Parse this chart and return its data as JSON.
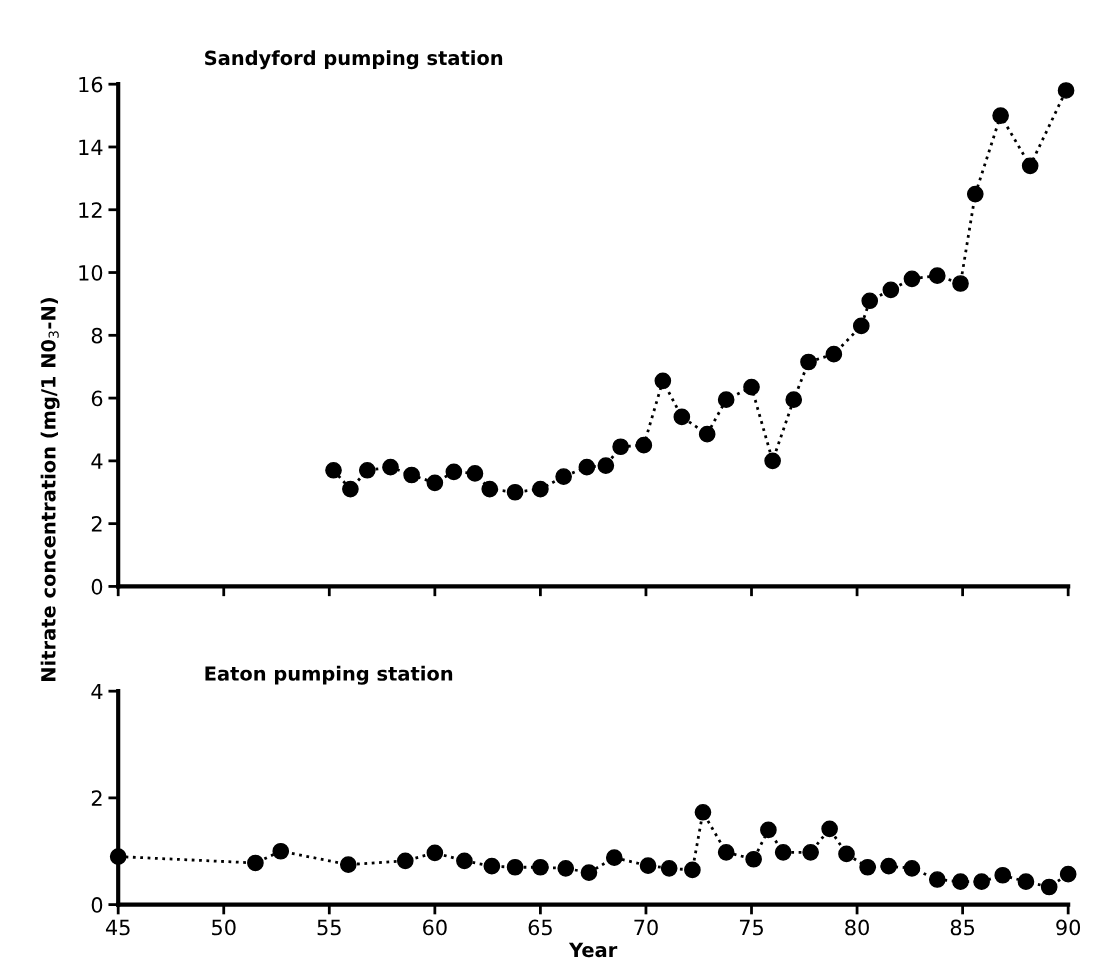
{
  "chart_data": [
    {
      "type": "line",
      "title": "Sandyford pumping station",
      "ylabel": "Nitrate concentration (mg/1 N0$_{3}$-N)",
      "marker": "circle",
      "line_style": "dotted",
      "grid": false,
      "legend": false,
      "tick_labels": "y",
      "xlim": [
        45,
        90
      ],
      "xticks": [
        45,
        50,
        55,
        60,
        65,
        70,
        75,
        80,
        85,
        90
      ],
      "ylim": [
        0,
        16
      ],
      "yticks": [
        0,
        2,
        4,
        6,
        8,
        10,
        12,
        14,
        16
      ],
      "x": [
        55.2,
        56.0,
        56.8,
        57.9,
        58.9,
        60.0,
        60.9,
        61.9,
        62.6,
        63.8,
        65.0,
        66.1,
        67.2,
        68.1,
        68.8,
        69.9,
        70.8,
        71.7,
        72.9,
        73.8,
        75.0,
        76.0,
        77.0,
        77.7,
        78.9,
        80.2,
        80.6,
        81.6,
        82.6,
        83.8,
        84.9,
        85.6,
        86.8,
        88.2,
        89.9
      ],
      "series": [
        {
          "color": "#000000",
          "values": [
            3.7,
            3.1,
            3.7,
            3.8,
            3.55,
            3.3,
            3.65,
            3.6,
            3.1,
            3.0,
            3.1,
            3.5,
            3.8,
            3.85,
            4.45,
            4.5,
            6.55,
            5.4,
            4.85,
            5.95,
            6.35,
            4.0,
            5.95,
            7.15,
            7.4,
            8.3,
            9.1,
            9.45,
            9.8,
            9.9,
            9.65,
            12.5,
            15.0,
            13.4,
            15.8
          ]
        }
      ]
    },
    {
      "type": "line",
      "title": "Eaton pumping station",
      "xlabel": "Year",
      "marker": "circle",
      "line_style": "dotted",
      "grid": false,
      "legend": false,
      "xlim": [
        45,
        90
      ],
      "xticks": [
        45,
        50,
        55,
        60,
        65,
        70,
        75,
        80,
        85,
        90
      ],
      "ylim": [
        0,
        4
      ],
      "yticks": [
        0,
        2,
        4
      ],
      "x": [
        45.0,
        51.5,
        52.7,
        55.9,
        58.6,
        60.0,
        61.4,
        62.7,
        63.8,
        65.0,
        66.2,
        67.3,
        68.5,
        70.1,
        71.1,
        72.2,
        72.7,
        73.8,
        75.1,
        75.8,
        76.5,
        77.8,
        78.7,
        79.5,
        80.5,
        81.5,
        82.6,
        83.8,
        84.9,
        85.9,
        86.9,
        88.0,
        89.1,
        90.0
      ],
      "series": [
        {
          "color": "#000000",
          "values": [
            0.9,
            0.78,
            1.0,
            0.75,
            0.82,
            0.97,
            0.82,
            0.72,
            0.7,
            0.7,
            0.68,
            0.6,
            0.88,
            0.73,
            0.68,
            0.65,
            1.73,
            0.98,
            0.85,
            1.4,
            0.98,
            0.98,
            1.42,
            0.95,
            0.7,
            0.72,
            0.68,
            0.47,
            0.43,
            0.43,
            0.55,
            0.43,
            0.33,
            0.57
          ]
        }
      ]
    }
  ]
}
